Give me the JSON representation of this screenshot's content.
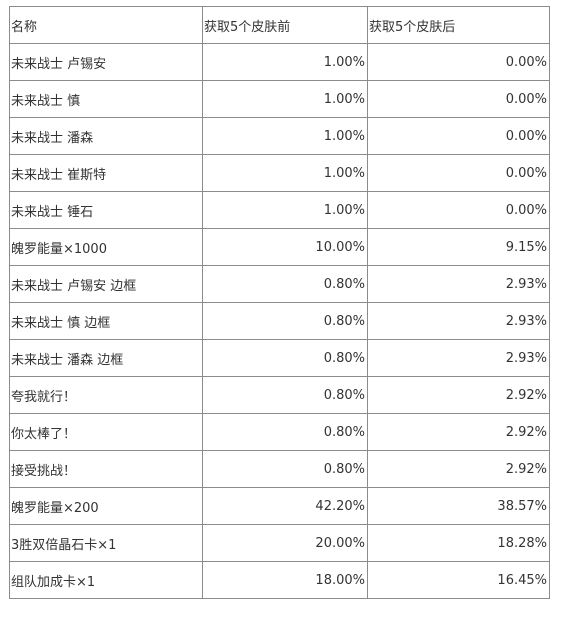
{
  "table": {
    "headers": [
      "名称",
      "获取5个皮肤前",
      "获取5个皮肤后"
    ],
    "rows": [
      [
        "未来战士 卢锡安",
        "1.00%",
        "0.00%"
      ],
      [
        "未来战士 慎",
        "1.00%",
        "0.00%"
      ],
      [
        "未来战士 潘森",
        "1.00%",
        "0.00%"
      ],
      [
        "未来战士 崔斯特",
        "1.00%",
        "0.00%"
      ],
      [
        "未来战士 锤石",
        "1.00%",
        "0.00%"
      ],
      [
        "魄罗能量×1000",
        "10.00%",
        "9.15%"
      ],
      [
        "未来战士 卢锡安 边框",
        "0.80%",
        "2.93%"
      ],
      [
        "未来战士 慎 边框",
        "0.80%",
        "2.93%"
      ],
      [
        "未来战士 潘森 边框",
        "0.80%",
        "2.93%"
      ],
      [
        "夸我就行！",
        "0.80%",
        "2.92%"
      ],
      [
        "你太棒了！",
        "0.80%",
        "2.92%"
      ],
      [
        "接受挑战！",
        "0.80%",
        "2.92%"
      ],
      [
        "魄罗能量×200",
        "42.20%",
        "38.57%"
      ],
      [
        "3胜双倍晶石卡×1",
        "20.00%",
        "18.28%"
      ],
      [
        "组队加成卡×1",
        "18.00%",
        "16.45%"
      ]
    ]
  }
}
